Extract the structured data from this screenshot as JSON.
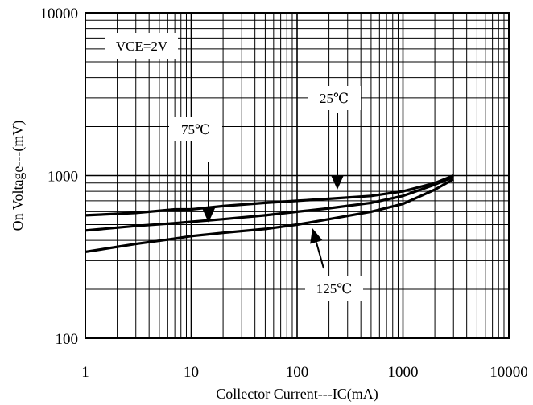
{
  "chart_data": {
    "type": "line",
    "title": "",
    "xlabel": "Collector Current---IC(mA)",
    "ylabel": "On Voltage---(mV)",
    "x_scale": "log",
    "y_scale": "log",
    "xlim": [
      1,
      10000
    ],
    "ylim": [
      100,
      10000
    ],
    "grid": true,
    "x_tick_labels": [
      "1",
      "10",
      "100",
      "1000",
      "10000"
    ],
    "y_tick_labels": [
      "100",
      "1000",
      "10000"
    ],
    "series": [
      {
        "temperature": "25℃",
        "x": [
          1,
          3,
          7,
          10,
          20,
          50,
          100,
          200,
          500,
          1000,
          2000,
          3000
        ],
        "y": [
          570,
          590,
          620,
          620,
          650,
          680,
          700,
          720,
          750,
          800,
          900,
          1000
        ]
      },
      {
        "temperature": "75℃",
        "x": [
          1,
          3,
          7,
          10,
          20,
          50,
          100,
          200,
          500,
          1000,
          2000,
          3000
        ],
        "y": [
          460,
          490,
          510,
          520,
          540,
          570,
          600,
          630,
          680,
          750,
          880,
          980
        ]
      },
      {
        "temperature": "125℃",
        "x": [
          1,
          3,
          7,
          10,
          20,
          50,
          100,
          200,
          500,
          1000,
          2000,
          3000
        ],
        "y": [
          340,
          380,
          410,
          425,
          445,
          470,
          500,
          540,
          600,
          670,
          820,
          950
        ]
      }
    ],
    "annotations": [
      {
        "text": "VCE=2V"
      },
      {
        "text": "25℃",
        "points_to": {
          "x": 250,
          "y": 720
        }
      },
      {
        "text": "75℃",
        "points_to": {
          "x": 15,
          "y": 520
        }
      },
      {
        "text": "125℃",
        "points_to": {
          "x": 140,
          "y": 520
        }
      }
    ]
  }
}
